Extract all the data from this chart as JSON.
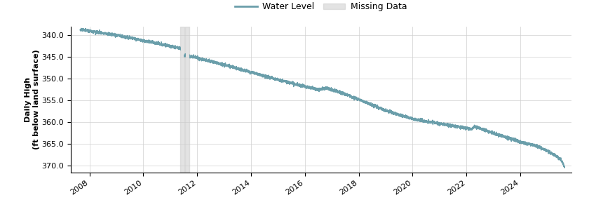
{
  "title": "",
  "ylabel": "Daily High\n(ft below land surface)",
  "line_color": "#6a9eaa",
  "missing_data_color": "#cccccc",
  "missing_data_alpha": 0.55,
  "background_color": "#ffffff",
  "grid_color": "#d0d0d0",
  "ylim": [
    338.0,
    371.5
  ],
  "yticks": [
    340.0,
    345.0,
    350.0,
    355.0,
    360.0,
    365.0,
    370.0
  ],
  "x_start_year": 2007.3,
  "x_end_year": 2025.9,
  "xtick_years": [
    2008,
    2010,
    2012,
    2014,
    2016,
    2018,
    2020,
    2022,
    2024
  ],
  "missing_data_ranges": [
    [
      2011.38,
      2011.52
    ],
    [
      2011.56,
      2011.72
    ]
  ],
  "line_width": 0.9,
  "ylabel_fontsize": 8,
  "tick_fontsize": 8,
  "legend_fontsize": 9,
  "tick_rotation": 35,
  "noise_std": 0.18,
  "keypoints": [
    [
      2007.65,
      338.7
    ],
    [
      2008.0,
      339.0
    ],
    [
      2009.0,
      340.0
    ],
    [
      2010.0,
      341.2
    ],
    [
      2010.5,
      341.8
    ],
    [
      2011.0,
      342.5
    ],
    [
      2011.25,
      342.8
    ],
    [
      2011.36,
      343.1
    ],
    [
      2011.52,
      344.6
    ],
    [
      2011.56,
      344.6
    ],
    [
      2011.72,
      344.8
    ],
    [
      2011.9,
      345.0
    ],
    [
      2012.0,
      345.2
    ],
    [
      2013.0,
      346.8
    ],
    [
      2014.0,
      348.5
    ],
    [
      2015.0,
      350.2
    ],
    [
      2016.0,
      351.8
    ],
    [
      2016.5,
      352.5
    ],
    [
      2016.8,
      352.1
    ],
    [
      2017.0,
      352.5
    ],
    [
      2017.5,
      353.5
    ],
    [
      2018.0,
      354.8
    ],
    [
      2018.5,
      356.0
    ],
    [
      2019.0,
      357.3
    ],
    [
      2019.5,
      358.3
    ],
    [
      2020.0,
      359.2
    ],
    [
      2020.5,
      359.8
    ],
    [
      2021.0,
      360.3
    ],
    [
      2021.5,
      360.8
    ],
    [
      2022.0,
      361.3
    ],
    [
      2022.2,
      361.6
    ],
    [
      2022.3,
      361.0
    ],
    [
      2022.5,
      361.4
    ],
    [
      2023.0,
      362.5
    ],
    [
      2023.5,
      363.5
    ],
    [
      2024.0,
      364.5
    ],
    [
      2024.5,
      365.2
    ],
    [
      2025.0,
      366.5
    ],
    [
      2025.5,
      368.5
    ],
    [
      2025.65,
      370.2
    ]
  ]
}
